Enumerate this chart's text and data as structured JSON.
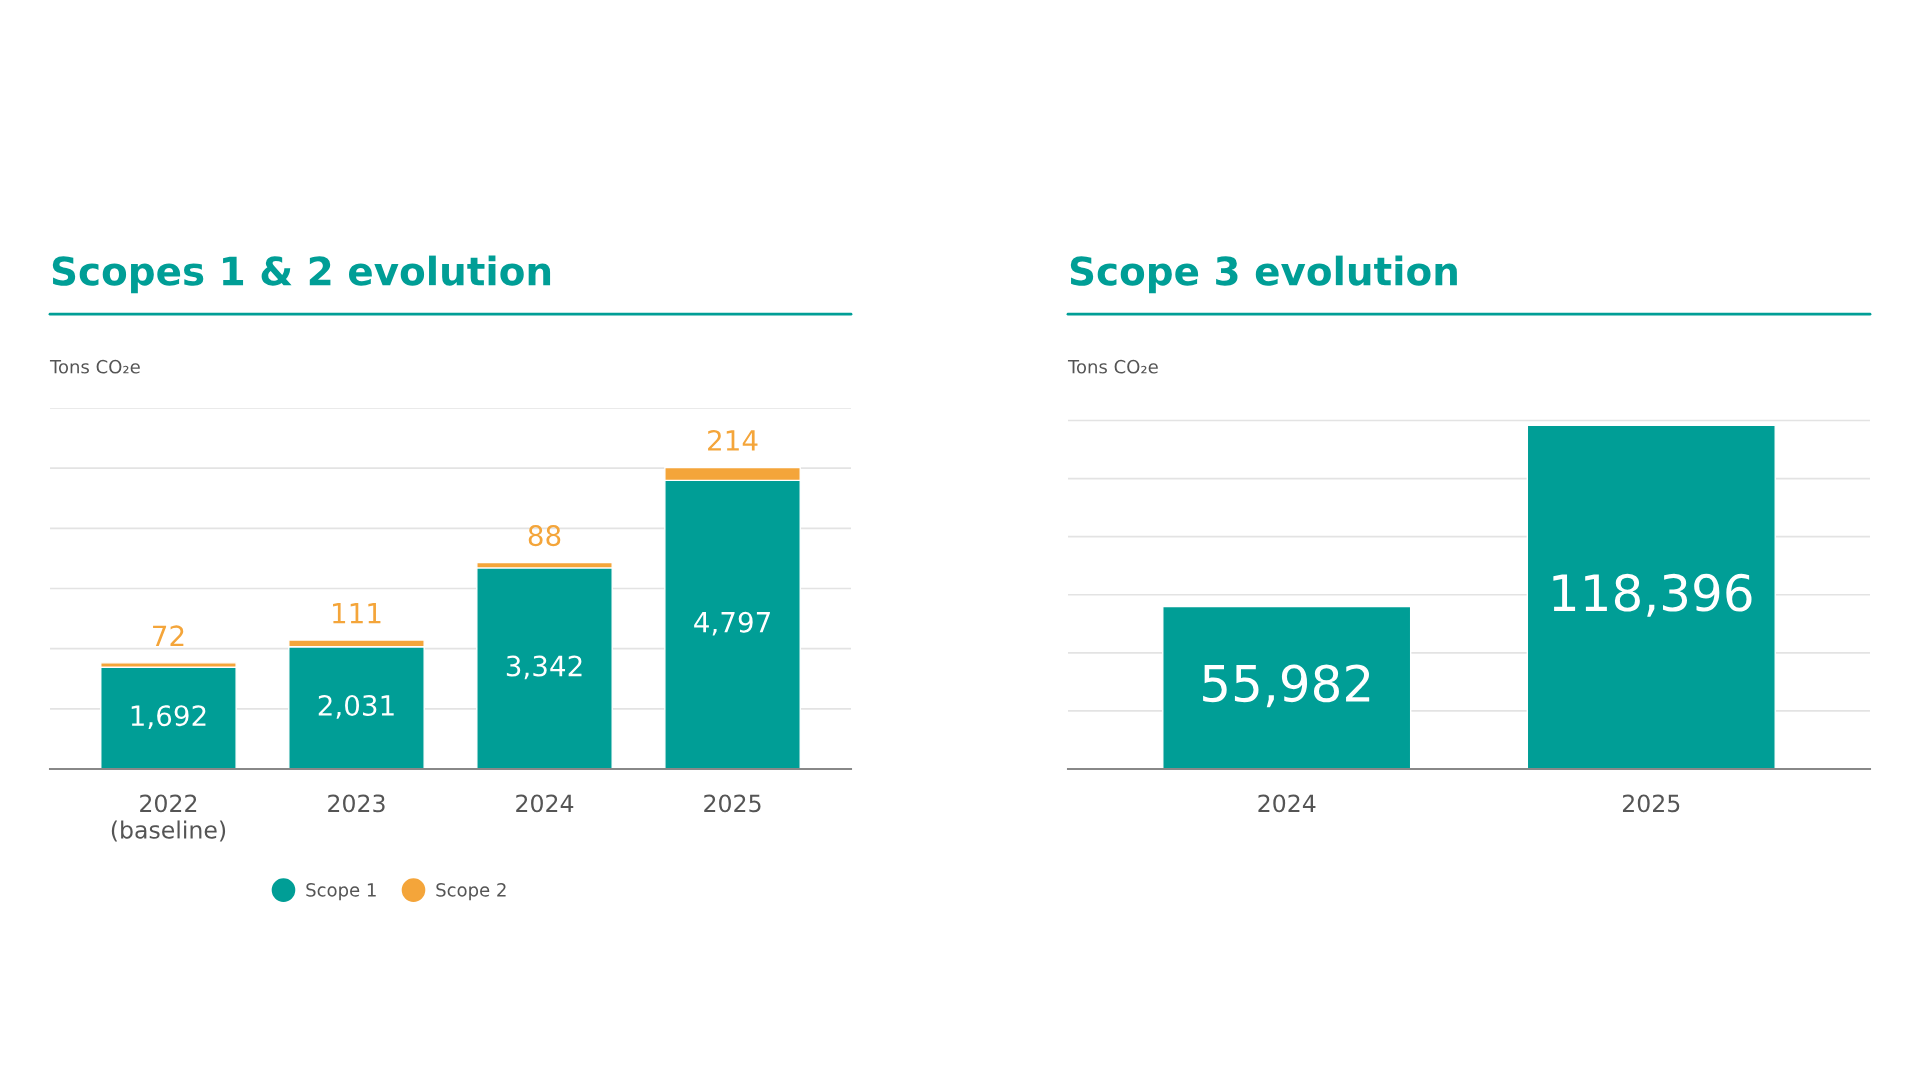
{
  "chart_data": [
    {
      "type": "bar",
      "title": "Scopes 1 & 2 evolution",
      "ylabel": "Tons CO₂e",
      "categories": [
        "2022\n(baseline)",
        "2023",
        "2024",
        "2025"
      ],
      "stacked": true,
      "series": [
        {
          "name": "Scope 1",
          "color": "#009e96",
          "values": [
            1692,
            2031,
            3342,
            4797
          ],
          "value_labels": [
            "1,692",
            "2,031",
            "3,342",
            "4,797"
          ]
        },
        {
          "name": "Scope 2",
          "color": "#f4a53a",
          "values": [
            72,
            111,
            88,
            214
          ]
        }
      ],
      "ylim": [
        0,
        6000
      ],
      "yticks": [
        {
          "value": 1000,
          "label": null
        },
        {
          "value": 2000,
          "label": null
        },
        {
          "value": 3000,
          "label": null
        },
        {
          "value": 4000,
          "label": null
        },
        {
          "value": 5000,
          "label": null
        },
        {
          "value": 6000,
          "label": null
        }
      ],
      "grid": "y",
      "tick_labels": "x",
      "data_labels": true,
      "legend": "bottom",
      "marker": "circle"
    },
    {
      "type": "bar",
      "title": "Scope 3 evolution",
      "ylabel": "Tons CO₂e",
      "categories": [
        "2024",
        "2025"
      ],
      "series": [
        {
          "color": "#009e96",
          "values": [
            55982,
            118396
          ],
          "value_labels": [
            "55,982",
            "118,396"
          ]
        }
      ],
      "grid": "y",
      "tick_labels": "x",
      "data_labels": true
    }
  ]
}
